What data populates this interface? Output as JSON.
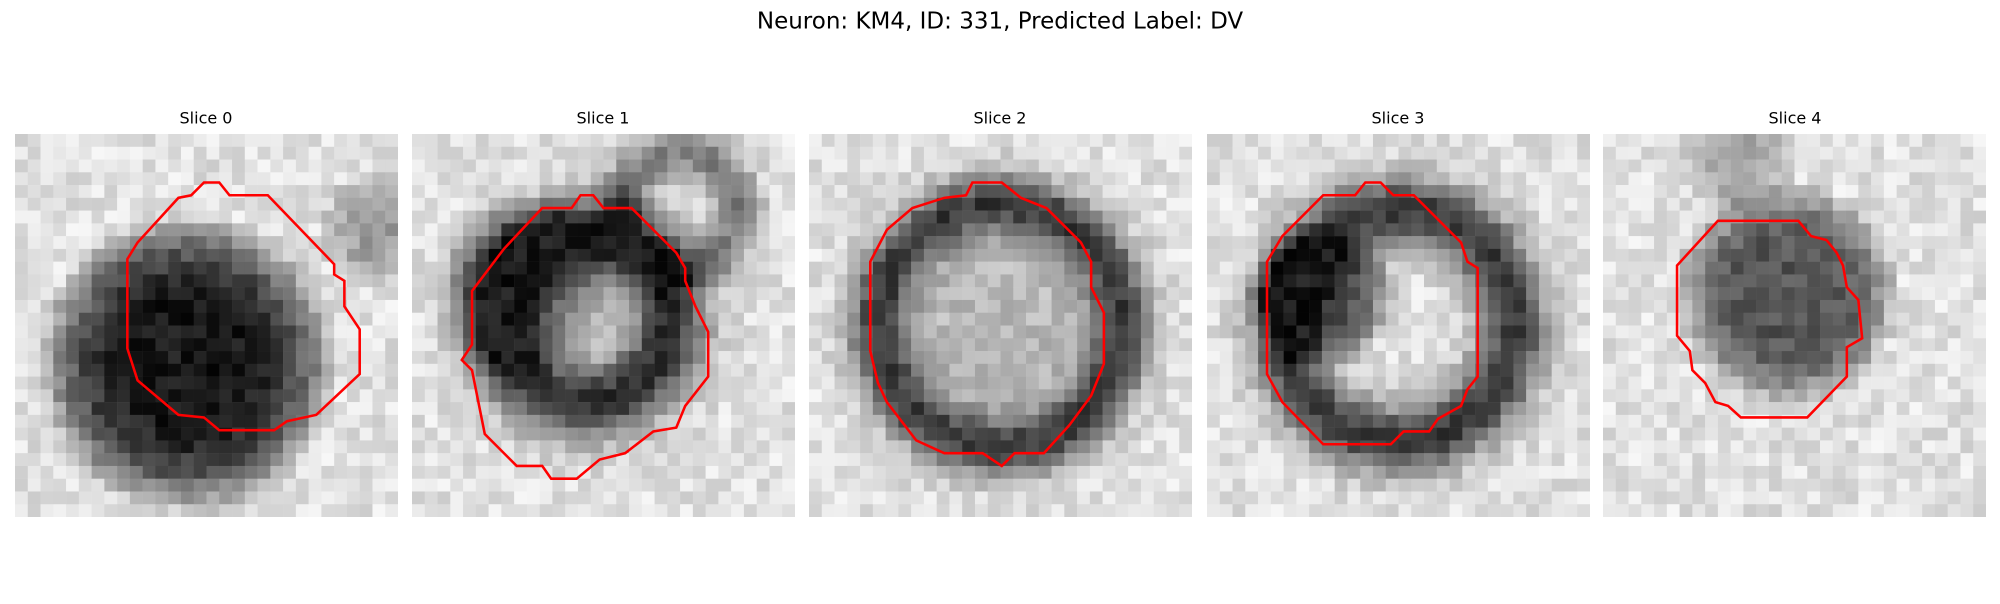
{
  "title": "Neuron: KM4, ID: 331, Predicted Label: DV",
  "panels": [
    {
      "title": "Slice 0"
    },
    {
      "title": "Slice 1"
    },
    {
      "title": "Slice 2"
    },
    {
      "title": "Slice 3"
    },
    {
      "title": "Slice 4"
    }
  ]
}
